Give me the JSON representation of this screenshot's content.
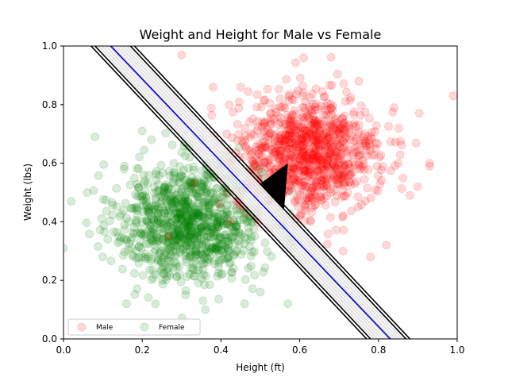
{
  "chart_data": {
    "type": "scatter",
    "title": "Weight and Height for Male vs Female",
    "xlabel": "Height (ft)",
    "ylabel": "Weight (lbs)",
    "xlim": [
      0,
      1
    ],
    "ylim": [
      0,
      1
    ],
    "x_ticks": [
      "0.0",
      "0.2",
      "0.4",
      "0.6",
      "0.8",
      "1.0"
    ],
    "y_ticks": [
      "0.0",
      "0.2",
      "0.4",
      "0.6",
      "0.8",
      "1.0"
    ],
    "grid": false,
    "legend_position": "lower-left",
    "series": [
      {
        "name": "Male",
        "color": "#ff0000",
        "cluster_center": [
          0.62,
          0.63
        ],
        "cluster_spread": [
          0.09,
          0.1
        ],
        "x_range": [
          0.26,
          1.0
        ],
        "y_range": [
          0.28,
          1.0
        ],
        "points": [
          [
            0.99,
            0.83
          ],
          [
            0.93,
            0.59
          ],
          [
            0.93,
            0.6
          ],
          [
            0.9,
            0.52
          ],
          [
            0.88,
            0.49
          ],
          [
            0.85,
            0.6
          ],
          [
            0.78,
            0.28
          ],
          [
            0.82,
            0.32
          ],
          [
            0.75,
            0.88
          ],
          [
            0.61,
            0.96
          ],
          [
            0.45,
            0.86
          ],
          [
            0.38,
            0.86
          ],
          [
            0.3,
            0.97
          ],
          [
            0.6,
            0.42
          ],
          [
            0.63,
            0.33
          ],
          [
            0.71,
            0.3
          ],
          [
            0.55,
            0.45
          ],
          [
            0.74,
            0.53
          ],
          [
            0.84,
            0.79
          ],
          [
            0.42,
            0.62
          ],
          [
            0.69,
            0.75
          ],
          [
            0.55,
            0.82
          ],
          [
            0.66,
            0.52
          ],
          [
            0.58,
            0.69
          ]
        ]
      },
      {
        "name": "Female",
        "color": "#008000",
        "cluster_center": [
          0.32,
          0.4
        ],
        "cluster_spread": [
          0.09,
          0.1
        ],
        "x_range": [
          0.0,
          0.6
        ],
        "y_range": [
          0.05,
          0.72
        ],
        "points": [
          [
            0.0,
            0.31
          ],
          [
            0.02,
            0.47
          ],
          [
            0.08,
            0.69
          ],
          [
            0.16,
            0.12
          ],
          [
            0.2,
            0.71
          ],
          [
            0.31,
            0.15
          ],
          [
            0.36,
            0.1
          ],
          [
            0.46,
            0.12
          ],
          [
            0.5,
            0.16
          ],
          [
            0.57,
            0.12
          ],
          [
            0.06,
            0.5
          ],
          [
            0.1,
            0.28
          ],
          [
            0.28,
            0.6
          ],
          [
            0.44,
            0.3
          ],
          [
            0.22,
            0.45
          ],
          [
            0.35,
            0.52
          ],
          [
            0.14,
            0.35
          ],
          [
            0.4,
            0.22
          ]
        ]
      }
    ],
    "lines": [
      {
        "name": "boundary",
        "color": "#0000cc",
        "x": [
          0.12,
          0.83
        ],
        "y": [
          1.0,
          0.0
        ]
      },
      {
        "name": "margin-inner-lower",
        "color": "#000000",
        "x": [
          0.08,
          0.78
        ],
        "y": [
          1.0,
          0.0
        ]
      },
      {
        "name": "margin-outer-lower",
        "color": "#000000",
        "x": [
          0.07,
          0.77
        ],
        "y": [
          1.0,
          0.0
        ]
      },
      {
        "name": "margin-inner-upper",
        "color": "#000000",
        "x": [
          0.17,
          0.87
        ],
        "y": [
          1.0,
          0.0
        ]
      },
      {
        "name": "margin-outer-upper",
        "color": "#000000",
        "x": [
          0.18,
          0.88
        ],
        "y": [
          1.0,
          0.0
        ]
      }
    ],
    "marker_wedge": {
      "color": "#000000",
      "points": [
        [
          0.5,
          0.53
        ],
        [
          0.57,
          0.6
        ],
        [
          0.56,
          0.44
        ]
      ]
    }
  }
}
